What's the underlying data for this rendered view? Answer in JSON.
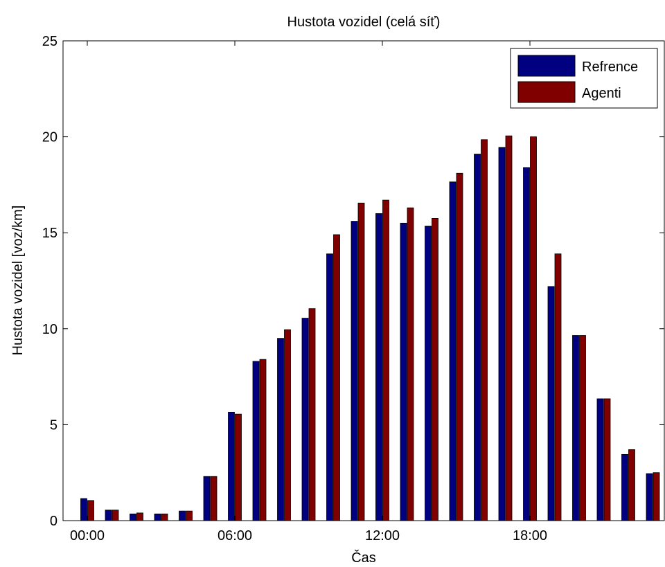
{
  "chart_data": {
    "type": "bar",
    "title": "Hustota vozidel (celá síť)",
    "xlabel": "Čas",
    "ylabel": "Hustota vozidel [voz/km]",
    "ylim": [
      0,
      25
    ],
    "y_ticks": [
      "0",
      "5",
      "10",
      "15",
      "20",
      "25"
    ],
    "x_ticks": [
      "00:00",
      "06:00",
      "12:00",
      "18:00"
    ],
    "hours": [
      0,
      1,
      2,
      3,
      4,
      5,
      6,
      7,
      8,
      9,
      10,
      11,
      12,
      13,
      14,
      15,
      16,
      17,
      18,
      19,
      20,
      21,
      22,
      23
    ],
    "legend_position": "top-right",
    "series": [
      {
        "name": "Refrence",
        "color": "#000080",
        "values": [
          1.15,
          0.55,
          0.35,
          0.35,
          0.5,
          2.3,
          5.65,
          8.3,
          9.5,
          10.55,
          13.9,
          15.6,
          16.0,
          15.5,
          15.35,
          17.65,
          19.1,
          19.45,
          18.4,
          12.2,
          9.65,
          6.35,
          3.45,
          2.45
        ]
      },
      {
        "name": "Agenti",
        "color": "#800000",
        "values": [
          1.05,
          0.55,
          0.4,
          0.35,
          0.5,
          2.3,
          5.55,
          8.4,
          9.95,
          11.05,
          14.9,
          16.55,
          16.7,
          16.3,
          15.75,
          18.1,
          19.85,
          20.05,
          20.0,
          13.9,
          9.65,
          6.35,
          3.7,
          2.5
        ]
      }
    ]
  }
}
